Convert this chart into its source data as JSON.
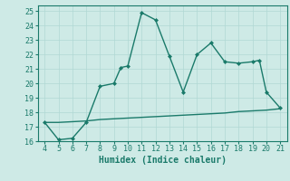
{
  "xlabel": "Humidex (Indice chaleur)",
  "x_main": [
    4,
    5,
    6,
    7,
    8,
    9,
    9.5,
    10,
    11,
    12,
    13,
    14,
    15,
    16,
    17,
    18,
    19,
    19.5,
    20,
    21
  ],
  "y_main": [
    17.3,
    16.1,
    16.2,
    17.3,
    19.8,
    20.0,
    21.1,
    21.2,
    24.9,
    24.4,
    21.9,
    19.4,
    22.0,
    22.8,
    21.5,
    21.4,
    21.5,
    21.6,
    19.4,
    18.3
  ],
  "x_base": [
    4,
    5,
    6,
    7,
    8,
    9,
    10,
    11,
    12,
    13,
    14,
    15,
    16,
    17,
    18,
    19,
    20,
    21
  ],
  "y_base": [
    17.3,
    17.3,
    17.35,
    17.4,
    17.5,
    17.55,
    17.6,
    17.65,
    17.7,
    17.75,
    17.8,
    17.85,
    17.9,
    17.95,
    18.05,
    18.1,
    18.15,
    18.25
  ],
  "line_color": "#1a7a6a",
  "bg_color": "#ceeae6",
  "grid_color": "#b0d8d4",
  "xlim": [
    3.5,
    21.5
  ],
  "ylim": [
    16.0,
    25.4
  ],
  "xticks": [
    4,
    5,
    6,
    7,
    8,
    9,
    10,
    11,
    12,
    13,
    14,
    15,
    16,
    17,
    18,
    19,
    20,
    21
  ],
  "yticks": [
    16,
    17,
    18,
    19,
    20,
    21,
    22,
    23,
    24,
    25
  ],
  "marker": "D",
  "markersize": 2.0,
  "linewidth": 1.0,
  "tick_fontsize": 6.0,
  "xlabel_fontsize": 7.0
}
